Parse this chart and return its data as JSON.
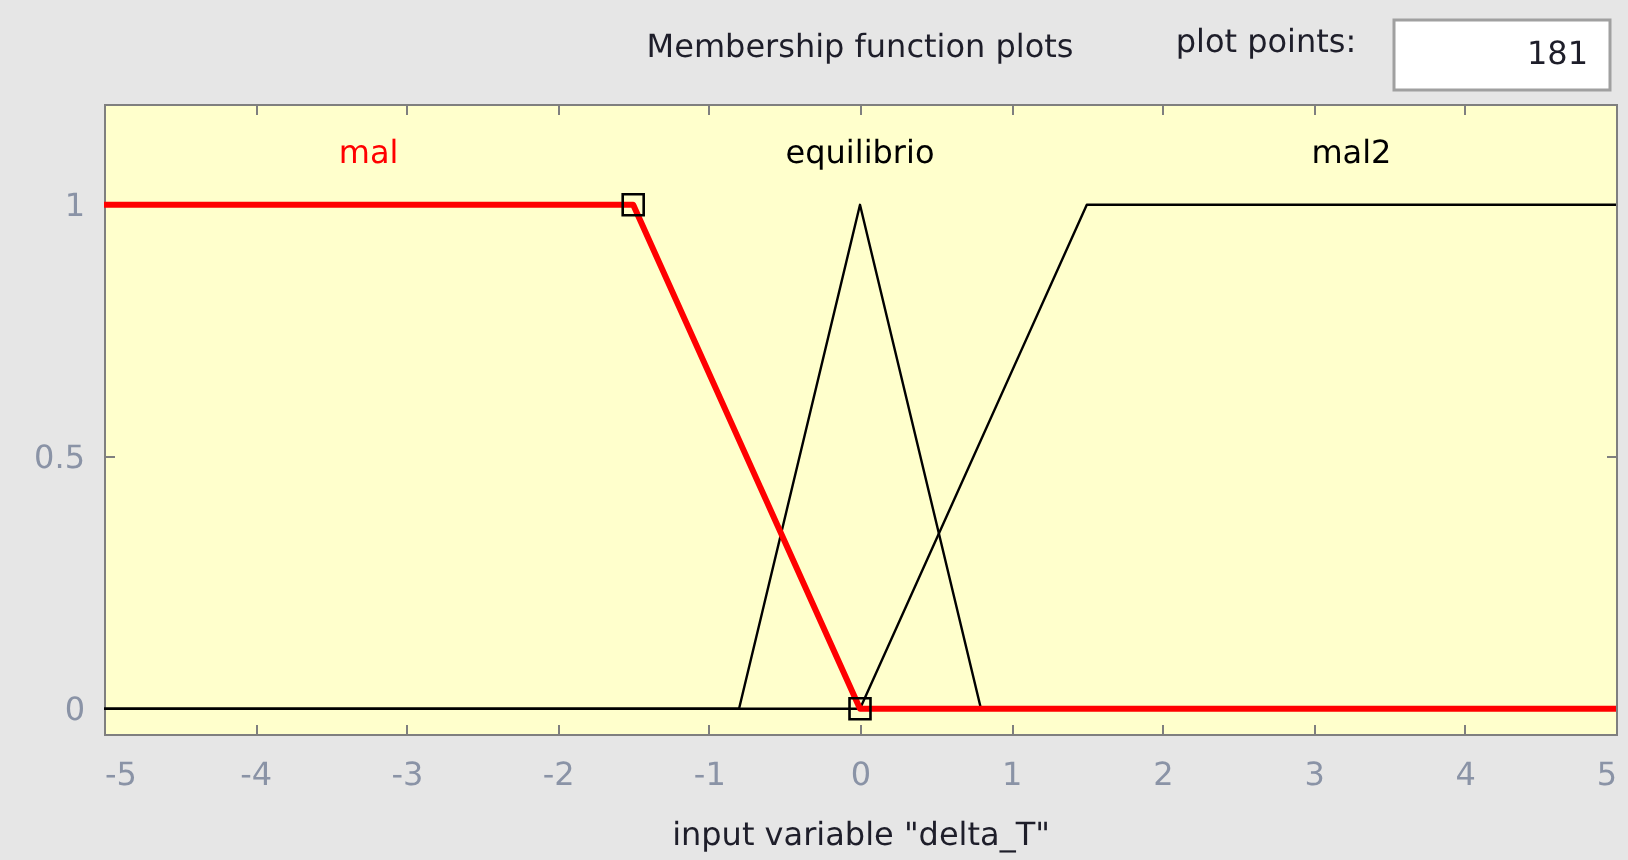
{
  "chart_data": {
    "type": "line",
    "title": "Membership function plots",
    "xlabel": "input variable \"delta_T\"",
    "series": [
      {
        "name": "mal",
        "color": "#ff0000",
        "x": [
          -5,
          -1.5,
          0,
          5
        ],
        "values": [
          1,
          1,
          0,
          0
        ]
      },
      {
        "name": "equilibrio",
        "color": "#000000",
        "x": [
          -5,
          -0.8,
          0,
          0.8,
          5
        ],
        "values": [
          0,
          0,
          1,
          0,
          0
        ]
      },
      {
        "name": "mal2",
        "color": "#000000",
        "x": [
          -5,
          0,
          1.5,
          5
        ],
        "values": [
          0,
          0,
          1,
          1
        ]
      },
      {
        "type": "scatter",
        "color": "#000000",
        "marker": "square",
        "x": [
          -1.5,
          0
        ],
        "values": [
          1,
          0
        ]
      }
    ],
    "xlim": [
      -5,
      5
    ],
    "ylim": [
      -0.05,
      1.2
    ],
    "xticks": [
      -5,
      -4,
      -3,
      -2,
      -1,
      0,
      1,
      2,
      3,
      4,
      5
    ],
    "yticks": [
      0,
      0.5,
      1
    ],
    "grid": false,
    "line_style": "solid",
    "annotations": [
      "plot points:",
      "181"
    ]
  }
}
